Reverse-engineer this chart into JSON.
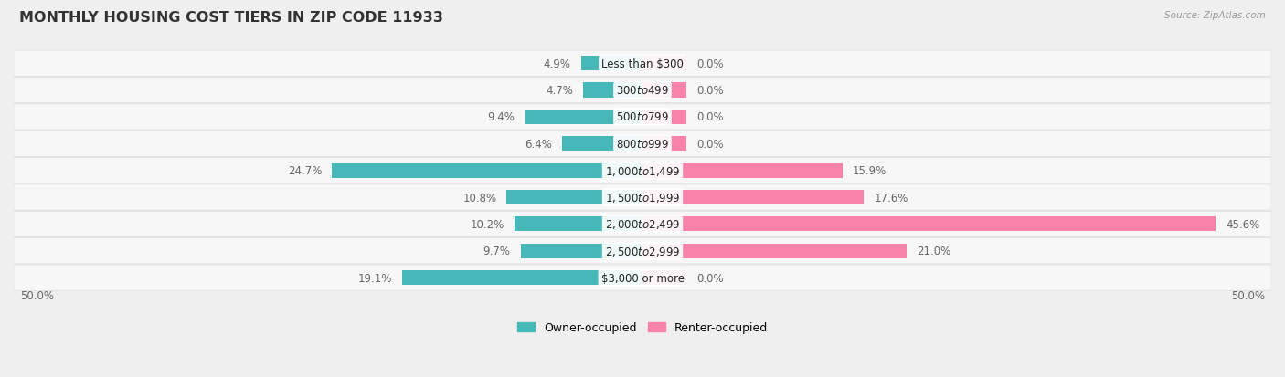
{
  "title": "MONTHLY HOUSING COST TIERS IN ZIP CODE 11933",
  "source": "Source: ZipAtlas.com",
  "categories": [
    "Less than $300",
    "$300 to $499",
    "$500 to $799",
    "$800 to $999",
    "$1,000 to $1,499",
    "$1,500 to $1,999",
    "$2,000 to $2,499",
    "$2,500 to $2,999",
    "$3,000 or more"
  ],
  "owner": [
    4.9,
    4.7,
    9.4,
    6.4,
    24.7,
    10.8,
    10.2,
    9.7,
    19.1
  ],
  "renter": [
    0.0,
    0.0,
    0.0,
    0.0,
    15.9,
    17.6,
    45.6,
    21.0,
    0.0
  ],
  "owner_color": "#47b8b8",
  "renter_color": "#f882aa",
  "bg_color": "#efefef",
  "row_bg_color": "#f7f7f7",
  "row_border_color": "#dddddd",
  "xlim": 50.0,
  "zero_stub": 3.5,
  "label_color": "#666666",
  "title_color": "#333333",
  "bar_height": 0.55,
  "bar_label_fontsize": 8.5,
  "category_fontsize": 8.5,
  "title_fontsize": 11.5
}
